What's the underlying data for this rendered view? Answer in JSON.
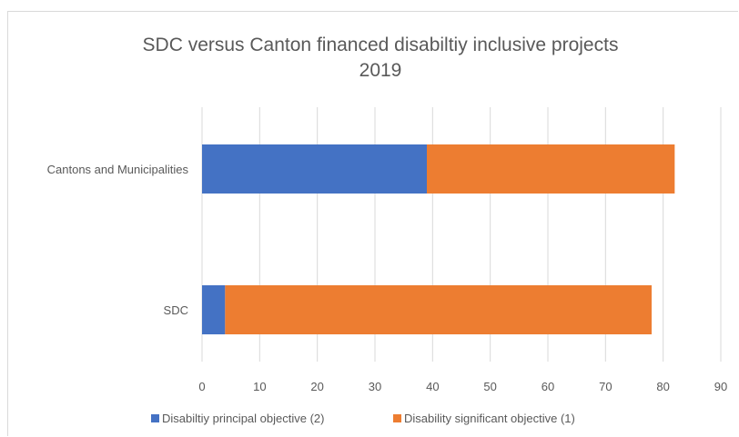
{
  "chart_data": {
    "type": "bar",
    "orientation": "horizontal",
    "stacked": true,
    "title": [
      "SDC versus Canton financed disabiltiy inclusive projects",
      "2019"
    ],
    "categories": [
      "Cantons and Municipalities",
      "SDC"
    ],
    "series": [
      {
        "name": "Disabiltiy principal objective (2)",
        "values": [
          39,
          4
        ],
        "color": "#4472c4"
      },
      {
        "name": "Disability significant objective (1)",
        "values": [
          43,
          74
        ],
        "color": "#ed7d31"
      }
    ],
    "xlim": [
      0,
      90
    ],
    "xticks": [
      "0",
      "10",
      "20",
      "30",
      "40",
      "50",
      "60",
      "70",
      "80",
      "90"
    ],
    "xlabel": "",
    "ylabel": "",
    "grid": true,
    "legend_position": "bottom"
  }
}
